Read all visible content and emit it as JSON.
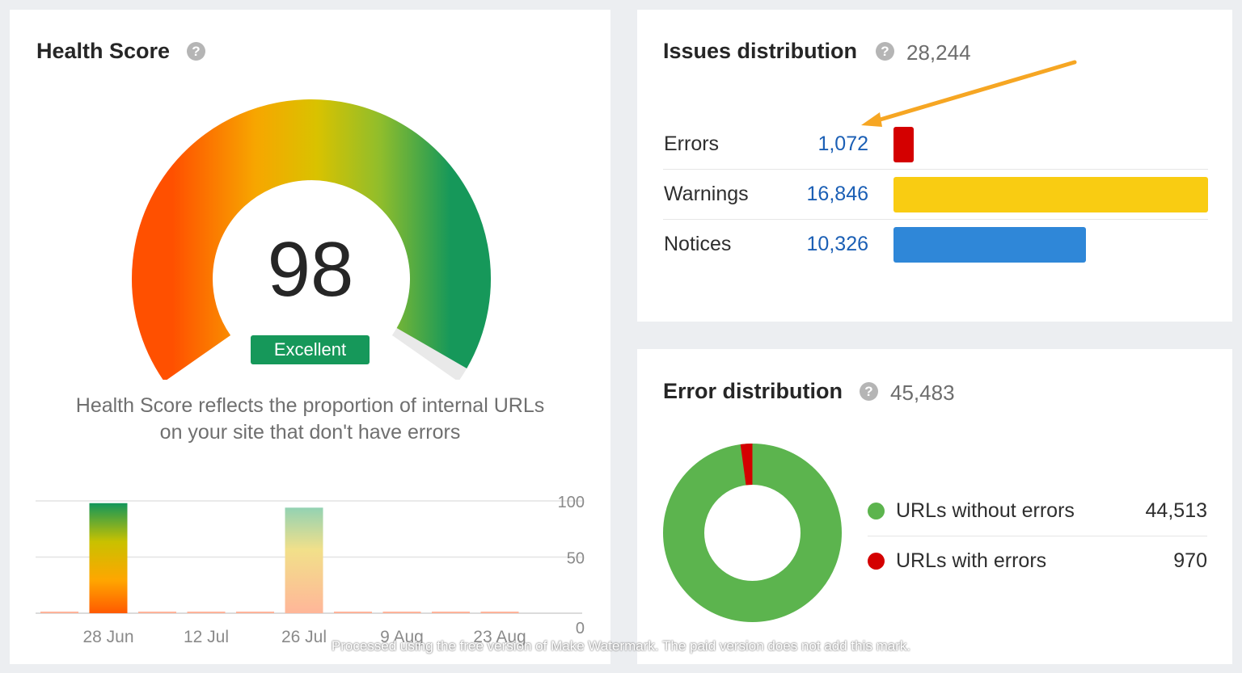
{
  "health": {
    "title": "Health Score",
    "help": "?",
    "score": "98",
    "score_value": 98,
    "rating": "Excellent",
    "description_line1": "Health Score reflects the proportion of internal URLs",
    "description_line2": "on your site that don't have errors",
    "gauge_colors": [
      "#ff5000",
      "#f7a600",
      "#d9c200",
      "#8fbd2c",
      "#16985a"
    ]
  },
  "history_chart": {
    "type": "bar",
    "categories": [
      "",
      "28 Jun",
      "",
      "",
      "",
      "26 Jul",
      "",
      "",
      "",
      ""
    ],
    "values": [
      0,
      98,
      0,
      0,
      0,
      94,
      0,
      0,
      0,
      0
    ],
    "x_tick_labels": [
      "28 Jun",
      "12 Jul",
      "26 Jul",
      "9 Aug",
      "23 Aug"
    ],
    "y_tick_labels": [
      "100",
      "50",
      "0"
    ],
    "ylim": [
      0,
      100
    ],
    "grid": true
  },
  "issues": {
    "title": "Issues distribution",
    "help": "?",
    "total": "28,244",
    "max_value": 16846,
    "rows": [
      {
        "label": "Errors",
        "value": "1,072",
        "amount": 1072,
        "color": "#d40000"
      },
      {
        "label": "Warnings",
        "value": "16,846",
        "amount": 16846,
        "color": "#f9cc12"
      },
      {
        "label": "Notices",
        "value": "10,326",
        "amount": 10326,
        "color": "#2f87d8"
      }
    ],
    "arrow_color": "#f6a623"
  },
  "errors": {
    "title": "Error distribution",
    "help": "?",
    "total": "45,483",
    "legend": [
      {
        "label": "URLs without errors",
        "value": "44,513",
        "amount": 44513,
        "color": "#5cb44e"
      },
      {
        "label": "URLs with errors",
        "value": "970",
        "amount": 970,
        "color": "#d40000"
      }
    ]
  },
  "watermark": "Processed using the free version of Make Watermark. The paid version does not add this mark."
}
